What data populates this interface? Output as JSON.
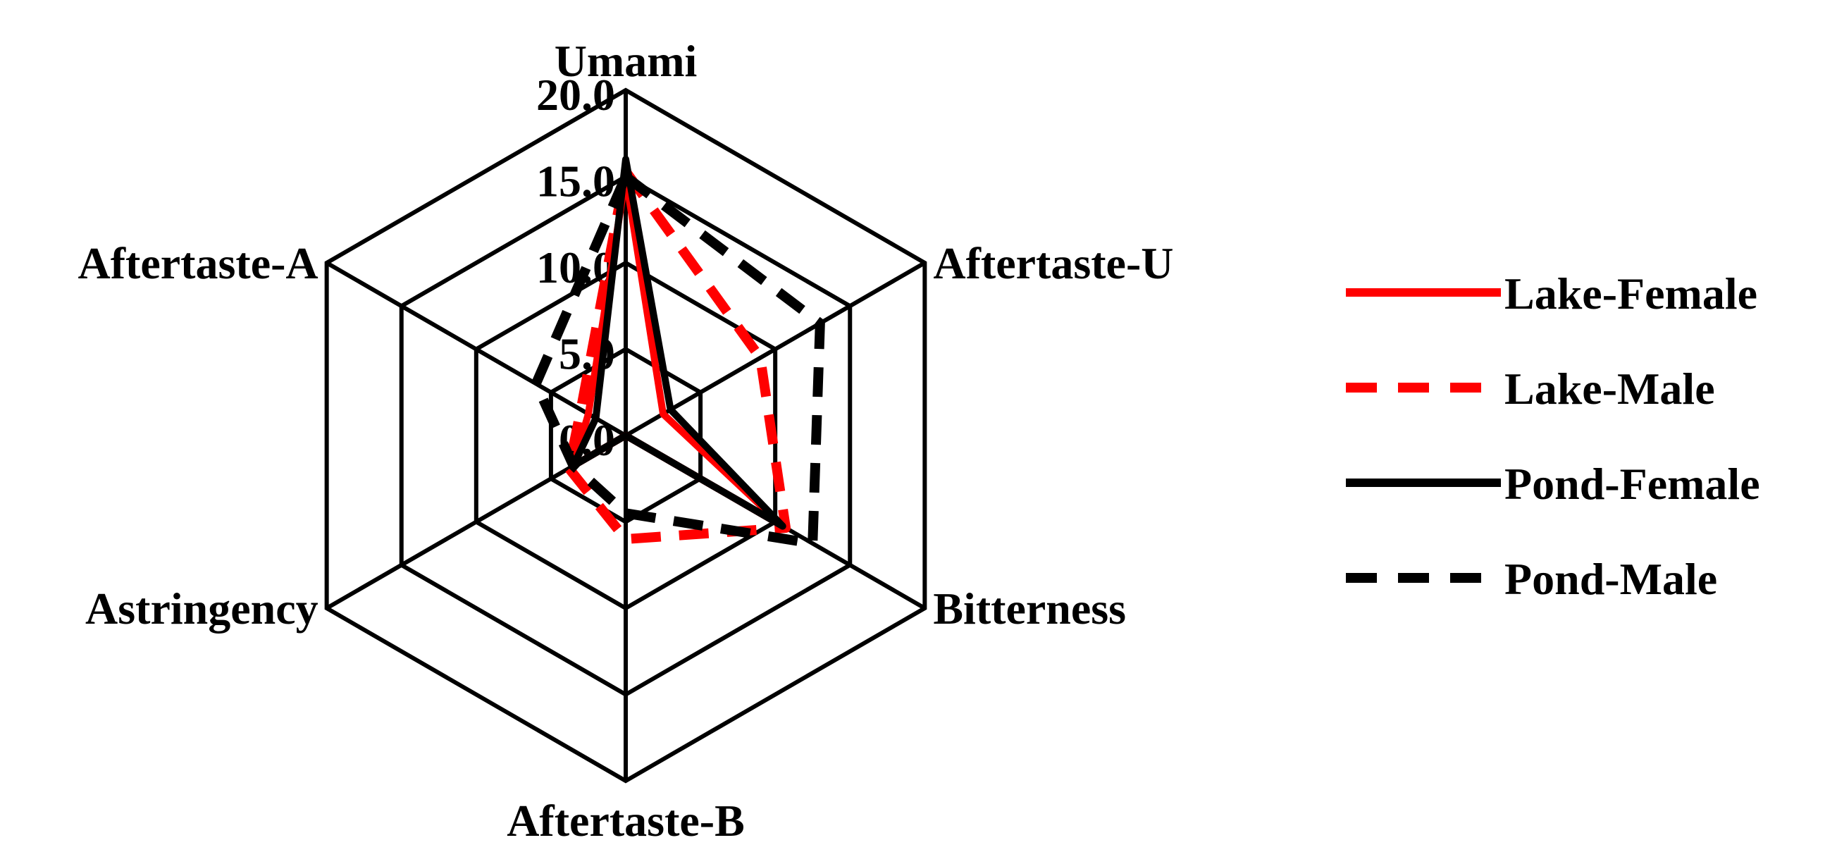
{
  "chart_data": {
    "type": "radar",
    "title": "",
    "axes": [
      "Umami",
      "Aftertaste-U",
      "Bitterness",
      "Aftertaste-B",
      "Astringency",
      "Aftertaste-A"
    ],
    "rlim": [
      0,
      20
    ],
    "tick_labels": [
      "0.0",
      "5.0",
      "10.0",
      "15.0",
      "20.0"
    ],
    "grid": true,
    "legend_position": "right",
    "series": [
      {
        "name": "Lake-Female",
        "values": [
          15.0,
          2.5,
          10.5,
          0.0,
          3.5,
          2.5
        ],
        "color": "#ff0000",
        "style": "solid"
      },
      {
        "name": "Lake-Male",
        "values": [
          15.3,
          9.0,
          10.7,
          6.0,
          3.8,
          3.0
        ],
        "color": "#ff0000",
        "style": "dashed"
      },
      {
        "name": "Pond-Female",
        "values": [
          16.0,
          3.0,
          10.5,
          0.0,
          3.5,
          2.0
        ],
        "color": "#000000",
        "style": "solid"
      },
      {
        "name": "Pond-Male",
        "values": [
          15.0,
          13.0,
          12.5,
          4.5,
          3.5,
          6.0
        ],
        "color": "#000000",
        "style": "dashed"
      }
    ]
  }
}
